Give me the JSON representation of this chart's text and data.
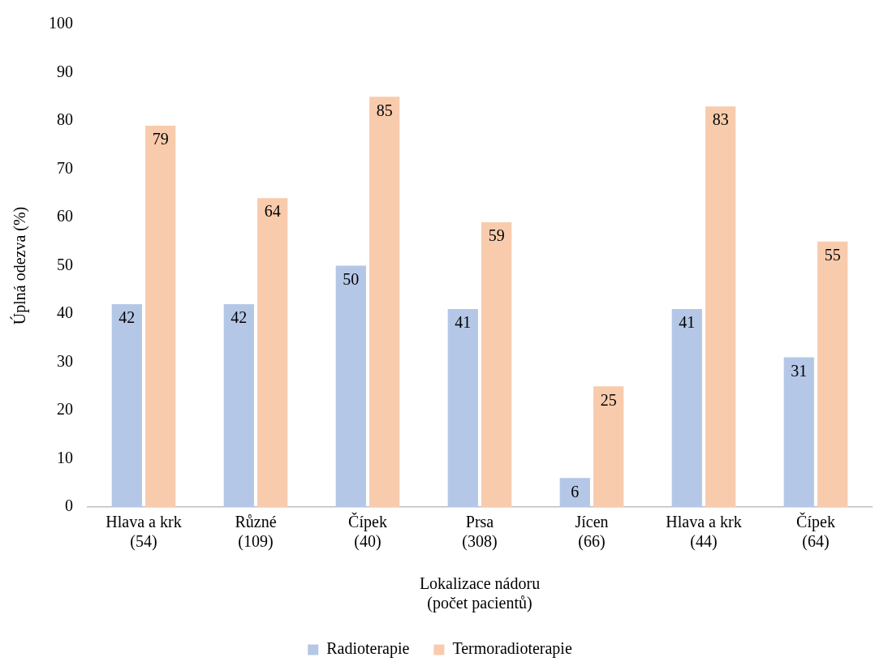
{
  "chart_data": {
    "type": "bar",
    "xlabel": "Lokalizace nádoru\n(počet pacientů)",
    "ylabel": "Úplná odezva (%)",
    "categories": [
      "Hlava a krk\n(54)",
      "Různé\n(109)",
      "Čípek\n(40)",
      "Prsa\n(308)",
      "Jícen\n(66)",
      "Hlava a krk\n(44)",
      "Čípek\n(64)"
    ],
    "series": [
      {
        "name": "Radioterapie",
        "color": "#b4c7e7",
        "values": [
          42,
          42,
          50,
          41,
          6,
          41,
          31
        ]
      },
      {
        "name": "Termoradioterapie",
        "color": "#f8cbad",
        "values": [
          79,
          64,
          85,
          59,
          25,
          83,
          55
        ]
      }
    ],
    "ylim": [
      0,
      100
    ],
    "yticks": [
      0,
      10,
      20,
      30,
      40,
      50,
      60,
      70,
      80,
      90,
      100
    ],
    "grid": false,
    "legend": "bottom",
    "data_labels": true
  }
}
